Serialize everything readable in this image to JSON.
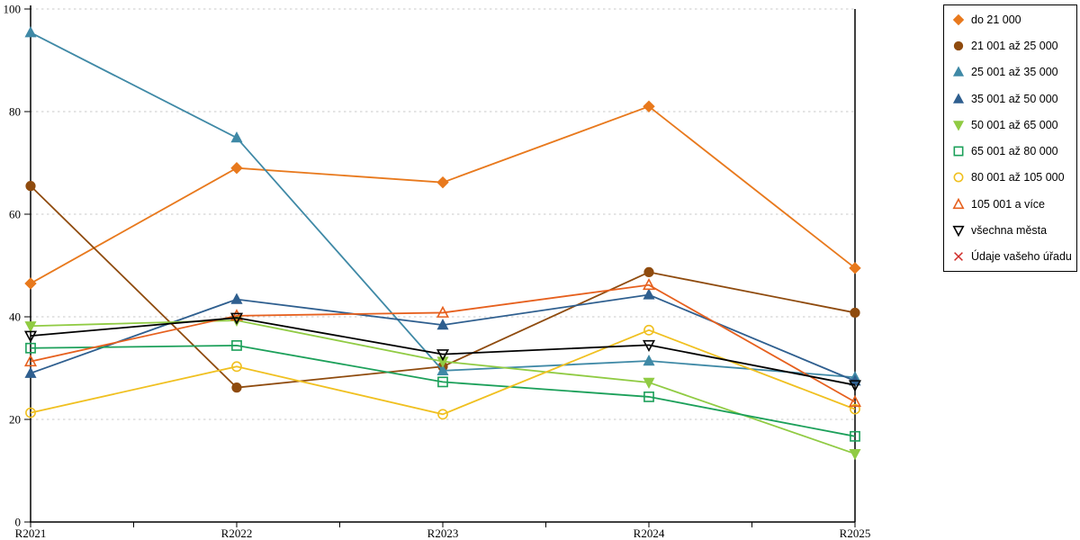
{
  "chart_data": {
    "type": "line",
    "title": "",
    "xlabel": "",
    "ylabel": "",
    "x_categories": [
      "R2021",
      "R2022",
      "R2023",
      "R2024",
      "R2025"
    ],
    "y_ticks": [
      0,
      20,
      40,
      60,
      80,
      100
    ],
    "ylim": [
      0,
      100
    ],
    "grid": "horizontal-dashed",
    "gridline_color": "#C9C9C9",
    "axis_color": "#000000",
    "legend_position": "right",
    "series": [
      {
        "name": "do 21 000",
        "marker": "diamond",
        "fill": "filled",
        "color": "#E8791D",
        "values": [
          46.5,
          69.0,
          66.2,
          81.0,
          49.5
        ]
      },
      {
        "name": "21 001 až 25 000",
        "marker": "circle",
        "fill": "filled",
        "color": "#8F4B0E",
        "values": [
          65.5,
          26.2,
          30.3,
          48.7,
          40.8
        ]
      },
      {
        "name": "25 001 až 35 000",
        "marker": "triangle-up",
        "fill": "filled",
        "color": "#3F89A6",
        "values": [
          95.4,
          74.9,
          29.5,
          31.4,
          28.2
        ]
      },
      {
        "name": "35 001 až 50 000",
        "marker": "triangle-up",
        "fill": "filled",
        "color": "#2F5F8F",
        "values": [
          29.0,
          43.4,
          38.4,
          44.3,
          27.5
        ]
      },
      {
        "name": "50 001 až 65 000",
        "marker": "triangle-down",
        "fill": "filled",
        "color": "#90CB43",
        "values": [
          38.2,
          39.3,
          31.3,
          27.2,
          13.3
        ]
      },
      {
        "name": "65 001 až 80 000",
        "marker": "square",
        "fill": "open",
        "color": "#1CA05A",
        "values": [
          33.9,
          34.4,
          27.3,
          24.4,
          16.7
        ]
      },
      {
        "name": "80 001 až 105 000",
        "marker": "circle",
        "fill": "open",
        "color": "#F0C020",
        "values": [
          21.3,
          30.3,
          21.0,
          37.4,
          22.0
        ]
      },
      {
        "name": "105 001 a více",
        "marker": "triangle-up",
        "fill": "open",
        "color": "#E6601E",
        "values": [
          31.3,
          40.2,
          40.8,
          46.2,
          23.4
        ]
      },
      {
        "name": "všechna města",
        "marker": "triangle-down",
        "fill": "open",
        "color": "#000000",
        "values": [
          36.3,
          39.8,
          32.7,
          34.5,
          26.7
        ]
      },
      {
        "name": "Údaje vašeho úřadu",
        "marker": "x",
        "fill": "open",
        "color": "#CF2A27",
        "values": [
          null,
          null,
          null,
          null,
          null
        ]
      }
    ]
  }
}
